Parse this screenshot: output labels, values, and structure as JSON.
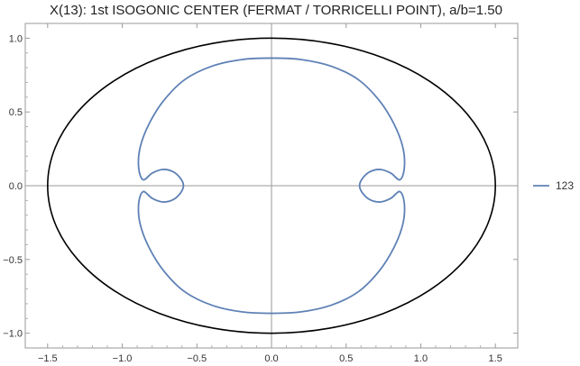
{
  "chart_data": {
    "type": "line",
    "title": "X(13): 1st ISOGONIC CENTER (FERMAT / TORRICELLI POINT), a/b=1.50",
    "xlabel": "",
    "ylabel": "",
    "xlim": [
      -1.65,
      1.65
    ],
    "ylim": [
      -1.1,
      1.1
    ],
    "x_ticks": [
      {
        "value": -1.5,
        "label": "−1.5"
      },
      {
        "value": -1.0,
        "label": "−1.0"
      },
      {
        "value": -0.5,
        "label": "−0.5"
      },
      {
        "value": 0.0,
        "label": "0.0"
      },
      {
        "value": 0.5,
        "label": "0.5"
      },
      {
        "value": 1.0,
        "label": "1.0"
      },
      {
        "value": 1.5,
        "label": "1.5"
      }
    ],
    "y_ticks": [
      {
        "value": 1.0,
        "label": "1.0"
      },
      {
        "value": 0.5,
        "label": "0.5"
      },
      {
        "value": 0.0,
        "label": "0.0"
      },
      {
        "value": -0.5,
        "label": "−0.5"
      },
      {
        "value": -1.0,
        "label": "−1.0"
      }
    ],
    "grid": false,
    "axes_through_origin": true,
    "legend_position": "right",
    "series": [
      {
        "name": "",
        "role": "ellipse",
        "color": "#000000",
        "closed": true,
        "points": [
          [
            1.5,
            0.0
          ],
          [
            1.449,
            0.259
          ],
          [
            1.299,
            0.5
          ],
          [
            1.061,
            0.707
          ],
          [
            0.75,
            0.866
          ],
          [
            0.388,
            0.966
          ],
          [
            0.0,
            1.0
          ],
          [
            -0.388,
            0.966
          ],
          [
            -0.75,
            0.866
          ],
          [
            -1.061,
            0.707
          ],
          [
            -1.299,
            0.5
          ],
          [
            -1.449,
            0.259
          ],
          [
            -1.5,
            0.0
          ],
          [
            -1.449,
            -0.259
          ],
          [
            -1.299,
            -0.5
          ],
          [
            -1.061,
            -0.707
          ],
          [
            -0.75,
            -0.866
          ],
          [
            -0.388,
            -0.966
          ],
          [
            0.0,
            -1.0
          ],
          [
            0.388,
            -0.966
          ],
          [
            0.75,
            -0.866
          ],
          [
            1.061,
            -0.707
          ],
          [
            1.299,
            -0.5
          ],
          [
            1.449,
            -0.259
          ]
        ]
      },
      {
        "name": "123",
        "role": "locus",
        "color": "#5e81b5",
        "closed": true,
        "points": [
          [
            0.0,
            0.865
          ],
          [
            -0.2,
            0.855
          ],
          [
            -0.4,
            0.81
          ],
          [
            -0.58,
            0.72
          ],
          [
            -0.72,
            0.58
          ],
          [
            -0.82,
            0.42
          ],
          [
            -0.88,
            0.26
          ],
          [
            -0.89,
            0.12
          ],
          [
            -0.86,
            0.04
          ],
          [
            -0.8,
            0.085
          ],
          [
            -0.73,
            0.11
          ],
          [
            -0.66,
            0.095
          ],
          [
            -0.61,
            0.05
          ],
          [
            -0.59,
            0.0
          ],
          [
            -0.61,
            -0.05
          ],
          [
            -0.66,
            -0.095
          ],
          [
            -0.73,
            -0.11
          ],
          [
            -0.8,
            -0.085
          ],
          [
            -0.86,
            -0.04
          ],
          [
            -0.89,
            -0.12
          ],
          [
            -0.88,
            -0.26
          ],
          [
            -0.82,
            -0.42
          ],
          [
            -0.72,
            -0.58
          ],
          [
            -0.58,
            -0.72
          ],
          [
            -0.4,
            -0.81
          ],
          [
            -0.2,
            -0.855
          ],
          [
            0.0,
            -0.865
          ],
          [
            0.2,
            -0.855
          ],
          [
            0.4,
            -0.81
          ],
          [
            0.58,
            -0.72
          ],
          [
            0.72,
            -0.58
          ],
          [
            0.82,
            -0.42
          ],
          [
            0.88,
            -0.26
          ],
          [
            0.89,
            -0.12
          ],
          [
            0.86,
            -0.04
          ],
          [
            0.8,
            -0.085
          ],
          [
            0.73,
            -0.11
          ],
          [
            0.66,
            -0.095
          ],
          [
            0.61,
            -0.05
          ],
          [
            0.59,
            0.0
          ],
          [
            0.61,
            0.05
          ],
          [
            0.66,
            0.095
          ],
          [
            0.73,
            0.11
          ],
          [
            0.8,
            0.085
          ],
          [
            0.86,
            0.04
          ],
          [
            0.89,
            0.12
          ],
          [
            0.88,
            0.26
          ],
          [
            0.82,
            0.42
          ],
          [
            0.72,
            0.58
          ],
          [
            0.58,
            0.72
          ],
          [
            0.4,
            0.81
          ],
          [
            0.2,
            0.855
          ]
        ]
      }
    ]
  }
}
